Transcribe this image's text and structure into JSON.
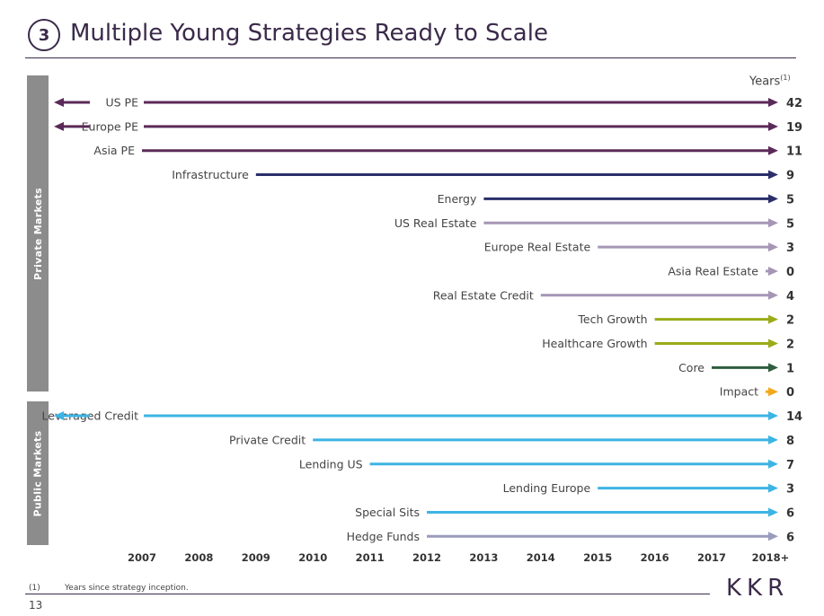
{
  "header": {
    "number": "3",
    "title": "Multiple Young Strategies Ready to Scale"
  },
  "sidebar": {
    "private": "Private Markets",
    "public": "Public Markets"
  },
  "footer": {
    "note_number": "(1)",
    "note_text": "Years since strategy inception.",
    "page": "13",
    "logo": "KKR"
  },
  "chart_data": {
    "type": "timeline",
    "years_label": "Years",
    "years_label_sup": "(1)",
    "x_ticks": [
      "2007",
      "2008",
      "2009",
      "2010",
      "2011",
      "2012",
      "2013",
      "2014",
      "2015",
      "2016",
      "2017",
      "2018+"
    ],
    "strategies": [
      {
        "name": "US PE",
        "group": "Private Markets",
        "years": 42,
        "color": "#5b2a58",
        "extends_before": true
      },
      {
        "name": "Europe PE",
        "group": "Private Markets",
        "years": 19,
        "color": "#5b2a58",
        "extends_before": true
      },
      {
        "name": "Asia PE",
        "group": "Private Markets",
        "years": 11,
        "color": "#5b2a58",
        "extends_before": false
      },
      {
        "name": "Infrastructure",
        "group": "Private Markets",
        "years": 9,
        "color": "#2a2f6b",
        "extends_before": false
      },
      {
        "name": "Energy",
        "group": "Private Markets",
        "years": 5,
        "color": "#2a2f6b",
        "extends_before": false
      },
      {
        "name": "US Real Estate",
        "group": "Private Markets",
        "years": 5,
        "color": "#a596b5",
        "extends_before": false
      },
      {
        "name": "Europe Real Estate",
        "group": "Private Markets",
        "years": 3,
        "color": "#a596b5",
        "extends_before": false
      },
      {
        "name": "Asia Real Estate",
        "group": "Private Markets",
        "years": 0,
        "color": "#a596b5",
        "extends_before": false
      },
      {
        "name": "Real Estate Credit",
        "group": "Private Markets",
        "years": 4,
        "color": "#a596b5",
        "extends_before": false
      },
      {
        "name": "Tech Growth",
        "group": "Private Markets",
        "years": 2,
        "color": "#9aab19",
        "extends_before": false
      },
      {
        "name": "Healthcare Growth",
        "group": "Private Markets",
        "years": 2,
        "color": "#9aab19",
        "extends_before": false
      },
      {
        "name": "Core",
        "group": "Private Markets",
        "years": 1,
        "color": "#2e5e3f",
        "extends_before": false
      },
      {
        "name": "Impact",
        "group": "Private Markets",
        "years": 0,
        "color": "#f2a81d",
        "extends_before": false
      },
      {
        "name": "Leveraged Credit",
        "group": "Public Markets",
        "years": 14,
        "color": "#3db4e3",
        "extends_before": true
      },
      {
        "name": "Private Credit",
        "group": "Public Markets",
        "years": 8,
        "color": "#3db4e3",
        "extends_before": false
      },
      {
        "name": "Lending US",
        "group": "Public Markets",
        "years": 7,
        "color": "#3db4e3",
        "extends_before": false
      },
      {
        "name": "Lending Europe",
        "group": "Public Markets",
        "years": 3,
        "color": "#3db4e3",
        "extends_before": false
      },
      {
        "name": "Special Sits",
        "group": "Public Markets",
        "years": 6,
        "color": "#3db4e3",
        "extends_before": false
      },
      {
        "name": "Hedge Funds",
        "group": "Public Markets",
        "years": 6,
        "color": "#9a9cbc",
        "extends_before": false
      }
    ]
  }
}
